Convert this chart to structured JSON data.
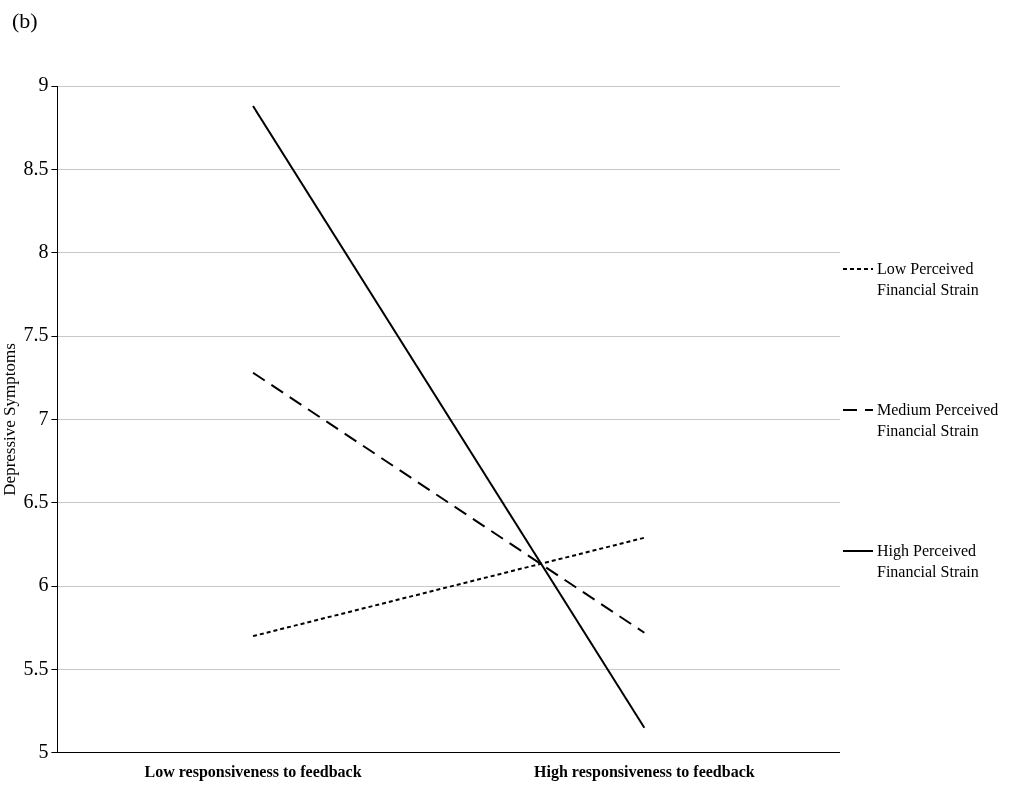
{
  "chart_data": {
    "type": "line",
    "annotations": [
      "(b)"
    ],
    "ylabel": "Depressive Symptoms",
    "categories": [
      "Low responsiveness to feedback",
      "High responsiveness to feedback"
    ],
    "series": [
      {
        "name": "Low Perceived Financial Strain",
        "color": "#000000",
        "line_style": "dotted",
        "values": [
          5.7,
          6.29
        ]
      },
      {
        "name": "Medium Perceived Financial Strain",
        "color": "#000000",
        "line_style": "dashed",
        "values": [
          7.28,
          5.72
        ]
      },
      {
        "name": "High Perceived Financial Strain",
        "color": "#000000",
        "line_style": "solid",
        "values": [
          8.88,
          5.15
        ]
      }
    ],
    "ylim": [
      5,
      9
    ],
    "yticks": [
      5,
      5.5,
      6,
      6.5,
      7,
      7.5,
      8,
      8.5,
      9
    ],
    "grid": "y",
    "legend": "right",
    "marker": "none"
  }
}
